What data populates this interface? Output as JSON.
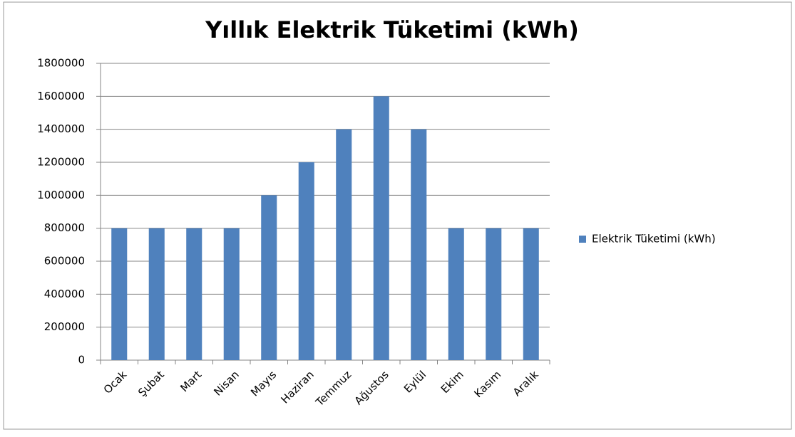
{
  "chart_data": {
    "type": "bar",
    "title": "Yıllık Elektrik Tüketimi (kWh)",
    "categories": [
      "Ocak",
      "Şubat",
      "Mart",
      "Nisan",
      "Mayıs",
      "Haziran",
      "Temmuz",
      "Ağustos",
      "Eylül",
      "Ekim",
      "Kasım",
      "Aralık"
    ],
    "series": [
      {
        "name": "Elektrik Tüketimi (kWh)",
        "color": "#4f81bd",
        "values": [
          800000,
          800000,
          800000,
          800000,
          1000000,
          1200000,
          1400000,
          1600000,
          1400000,
          800000,
          800000,
          800000
        ]
      }
    ],
    "ylim": [
      0,
      1800000
    ],
    "yticks": [
      0,
      200000,
      400000,
      600000,
      800000,
      1000000,
      1200000,
      1400000,
      1600000,
      1800000
    ],
    "grid": true,
    "legend": "right"
  }
}
